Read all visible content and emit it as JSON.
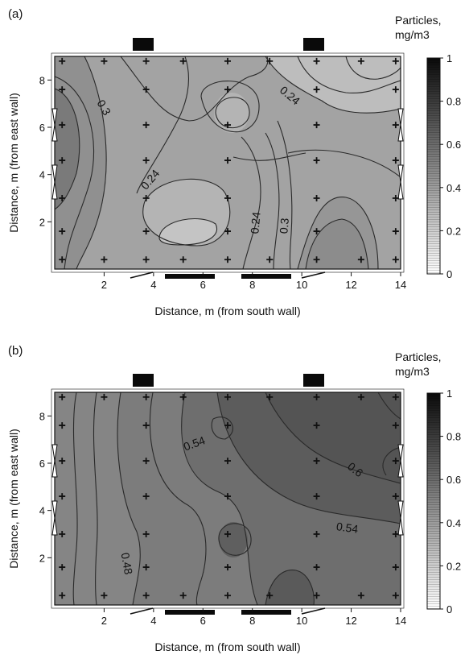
{
  "chart_data": [
    {
      "type": "heatmap",
      "panel_label": "(a)",
      "xlabel": "Distance, m (from south wall)",
      "ylabel": "Distance, m (from east wall)",
      "xlim": [
        0,
        14
      ],
      "ylim": [
        0,
        9
      ],
      "x_ticks": [
        2,
        4,
        6,
        8,
        10,
        12,
        14
      ],
      "y_ticks": [
        2,
        4,
        6,
        8
      ],
      "colorbar": {
        "title_line1": "Particles,",
        "title_line2": "mg/m3",
        "range": [
          0,
          1
        ],
        "ticks": [
          0,
          0.2,
          0.4,
          0.6,
          0.8,
          1
        ]
      },
      "contour_labels": [
        "0.3",
        "0.24",
        "0.24",
        "0.24",
        "0.3"
      ],
      "sample_points": [
        [
          0.3,
          0.4
        ],
        [
          2,
          0.4
        ],
        [
          3.7,
          0.4
        ],
        [
          5.2,
          0.4
        ],
        [
          7,
          0.4
        ],
        [
          8.7,
          0.4
        ],
        [
          10.6,
          0.4
        ],
        [
          12.4,
          0.4
        ],
        [
          13.8,
          0.4
        ],
        [
          0.3,
          1.6
        ],
        [
          3.7,
          1.6
        ],
        [
          7,
          1.6
        ],
        [
          10.6,
          1.6
        ],
        [
          13.8,
          1.6
        ],
        [
          0.3,
          3
        ],
        [
          3.7,
          3
        ],
        [
          7,
          3
        ],
        [
          10.6,
          3
        ],
        [
          13.8,
          3
        ],
        [
          0.3,
          4.6
        ],
        [
          3.7,
          4.6
        ],
        [
          7,
          4.6
        ],
        [
          10.6,
          4.6
        ],
        [
          13.8,
          4.6
        ],
        [
          0.3,
          6.1
        ],
        [
          3.7,
          6.1
        ],
        [
          7,
          6.1
        ],
        [
          10.6,
          6.1
        ],
        [
          13.8,
          6.1
        ],
        [
          0.3,
          7.6
        ],
        [
          3.7,
          7.6
        ],
        [
          7,
          7.6
        ],
        [
          10.6,
          7.6
        ],
        [
          13.8,
          7.6
        ],
        [
          0.3,
          8.8
        ],
        [
          2,
          8.8
        ],
        [
          3.7,
          8.8
        ],
        [
          5.2,
          8.8
        ],
        [
          7,
          8.8
        ],
        [
          8.7,
          8.8
        ],
        [
          10.6,
          8.8
        ],
        [
          12.4,
          8.8
        ],
        [
          13.8,
          8.8
        ]
      ]
    },
    {
      "type": "heatmap",
      "panel_label": "(b)",
      "xlabel": "Distance, m (from south wall)",
      "ylabel": "Distance, m (from east wall)",
      "xlim": [
        0,
        14
      ],
      "ylim": [
        0,
        9
      ],
      "x_ticks": [
        2,
        4,
        6,
        8,
        10,
        12,
        14
      ],
      "y_ticks": [
        2,
        4,
        6,
        8
      ],
      "colorbar": {
        "title_line1": "Particles,",
        "title_line2": "mg/m3",
        "range": [
          0,
          1
        ],
        "ticks": [
          0,
          0.2,
          0.4,
          0.6,
          0.8,
          1
        ]
      },
      "contour_labels": [
        "0.54",
        "0.6",
        "0.54",
        "0.48"
      ],
      "sample_points": [
        [
          0.3,
          0.4
        ],
        [
          2,
          0.4
        ],
        [
          3.7,
          0.4
        ],
        [
          5.2,
          0.4
        ],
        [
          7,
          0.4
        ],
        [
          8.7,
          0.4
        ],
        [
          10.6,
          0.4
        ],
        [
          12.4,
          0.4
        ],
        [
          13.8,
          0.4
        ],
        [
          0.3,
          1.6
        ],
        [
          3.7,
          1.6
        ],
        [
          7,
          1.6
        ],
        [
          10.6,
          1.6
        ],
        [
          13.8,
          1.6
        ],
        [
          0.3,
          3
        ],
        [
          3.7,
          3
        ],
        [
          7,
          3
        ],
        [
          10.6,
          3
        ],
        [
          13.8,
          3
        ],
        [
          0.3,
          4.6
        ],
        [
          3.7,
          4.6
        ],
        [
          7,
          4.6
        ],
        [
          10.6,
          4.6
        ],
        [
          13.8,
          4.6
        ],
        [
          0.3,
          6.1
        ],
        [
          3.7,
          6.1
        ],
        [
          7,
          6.1
        ],
        [
          10.6,
          6.1
        ],
        [
          13.8,
          6.1
        ],
        [
          0.3,
          7.6
        ],
        [
          3.7,
          7.6
        ],
        [
          7,
          7.6
        ],
        [
          10.6,
          7.6
        ],
        [
          13.8,
          7.6
        ],
        [
          0.3,
          8.8
        ],
        [
          2,
          8.8
        ],
        [
          3.7,
          8.8
        ],
        [
          5.2,
          8.8
        ],
        [
          7,
          8.8
        ],
        [
          8.7,
          8.8
        ],
        [
          10.6,
          8.8
        ],
        [
          12.4,
          8.8
        ],
        [
          13.8,
          8.8
        ]
      ]
    }
  ]
}
